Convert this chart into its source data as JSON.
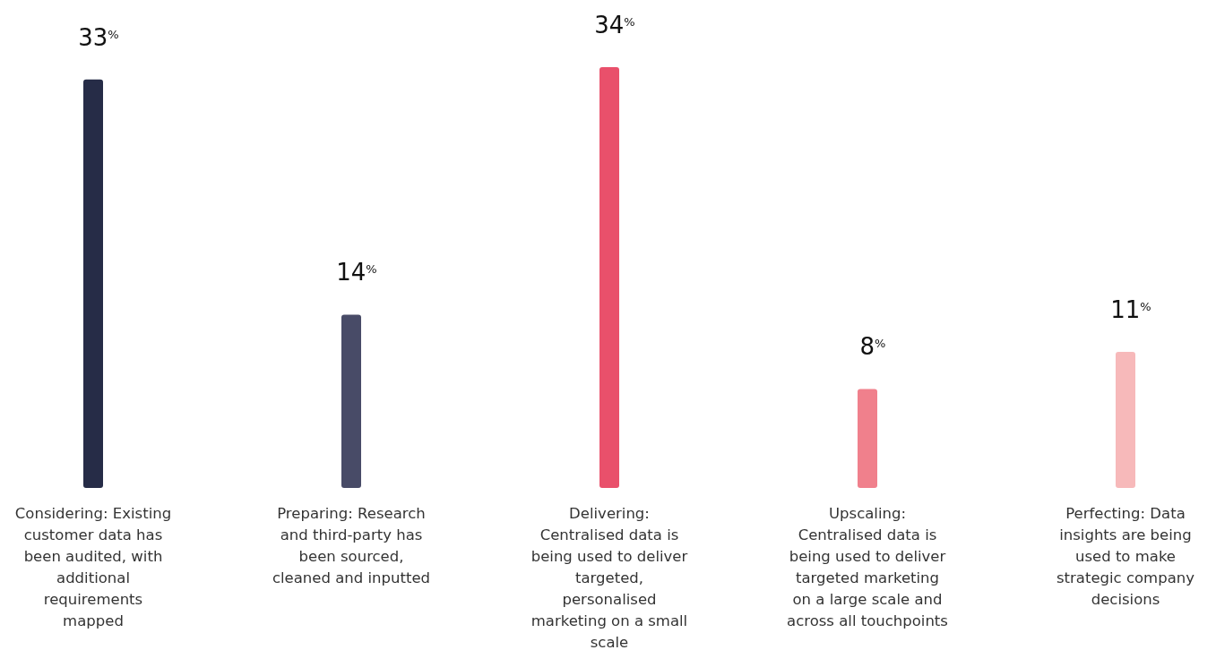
{
  "chart_data": {
    "type": "bar",
    "categories": [
      "Considering: Existing customer data has been audited, with additional requirements mapped",
      "Preparing: Research and third-party has been sourced, cleaned and inputted",
      "Delivering: Centralised data is being used to deliver targeted, personalised marketing on a small scale",
      "Upscaling: Centralised data is being used to deliver targeted marketing on a large scale and across all touchpoints",
      "Perfecting: Data insights are being used to make strategic company decisions"
    ],
    "values": [
      33,
      14,
      34,
      8,
      11
    ],
    "colors": [
      "#262c47",
      "#484b67",
      "#e9506b",
      "#f0808c",
      "#f7b9ba"
    ],
    "value_labels": [
      "33$^{%}$",
      "14$^{%}$",
      "34$^{%}$",
      "8$^{%}$",
      "11$^{%}$"
    ]
  }
}
